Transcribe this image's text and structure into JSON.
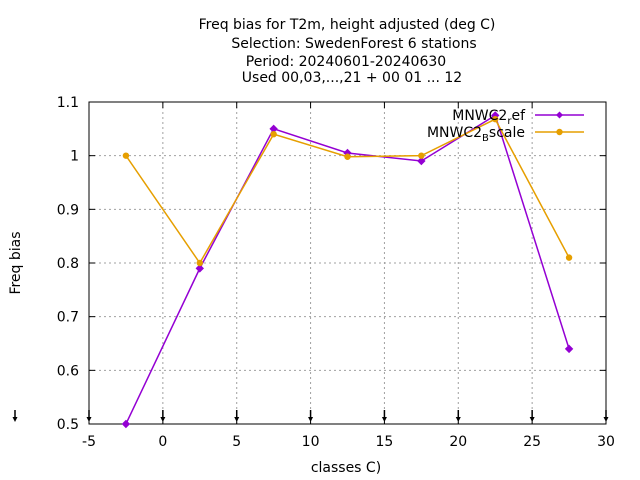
{
  "chart_data": {
    "type": "line",
    "title_lines": [
      "Freq bias  for T2m, height adjusted (deg C)",
      "Selection: SwedenForest      6 stations",
      "Period: 20240601-20240630",
      "Used 00,03,...,21 + 00 01 ... 12"
    ],
    "xlabel": "classes C)",
    "ylabel": "Freq bias",
    "xlim": [
      -5,
      30
    ],
    "ylim": [
      0.5,
      1.1
    ],
    "xticks": [
      -5,
      0,
      5,
      10,
      15,
      20,
      25,
      30
    ],
    "yticks": [
      0.5,
      0.6,
      0.7,
      0.8,
      0.9,
      1,
      1.1
    ],
    "xtick_labels": [
      "-5",
      "0",
      "5",
      "10",
      "15",
      "20",
      "25",
      "30"
    ],
    "ytick_labels": [
      "0.5",
      "0.6",
      "0.7",
      "0.8",
      "0.9",
      "1",
      "1.1"
    ],
    "grid": true,
    "legend_position": "top-right",
    "x": [
      -2.5,
      2.5,
      7.5,
      12.5,
      17.5,
      22.5,
      27.5
    ],
    "series": [
      {
        "name_main": "MNWC2",
        "name_sub": "r",
        "name_tail": "ef",
        "color": "#9400d3",
        "values": [
          0.5,
          0.79,
          1.05,
          1.005,
          0.99,
          1.075,
          0.64
        ]
      },
      {
        "name_main": "MNWC2",
        "name_sub": "B",
        "name_tail": "scale",
        "color": "#e69f00",
        "values": [
          1.0,
          0.8,
          1.04,
          0.998,
          1.0,
          1.068,
          0.81
        ]
      }
    ]
  }
}
